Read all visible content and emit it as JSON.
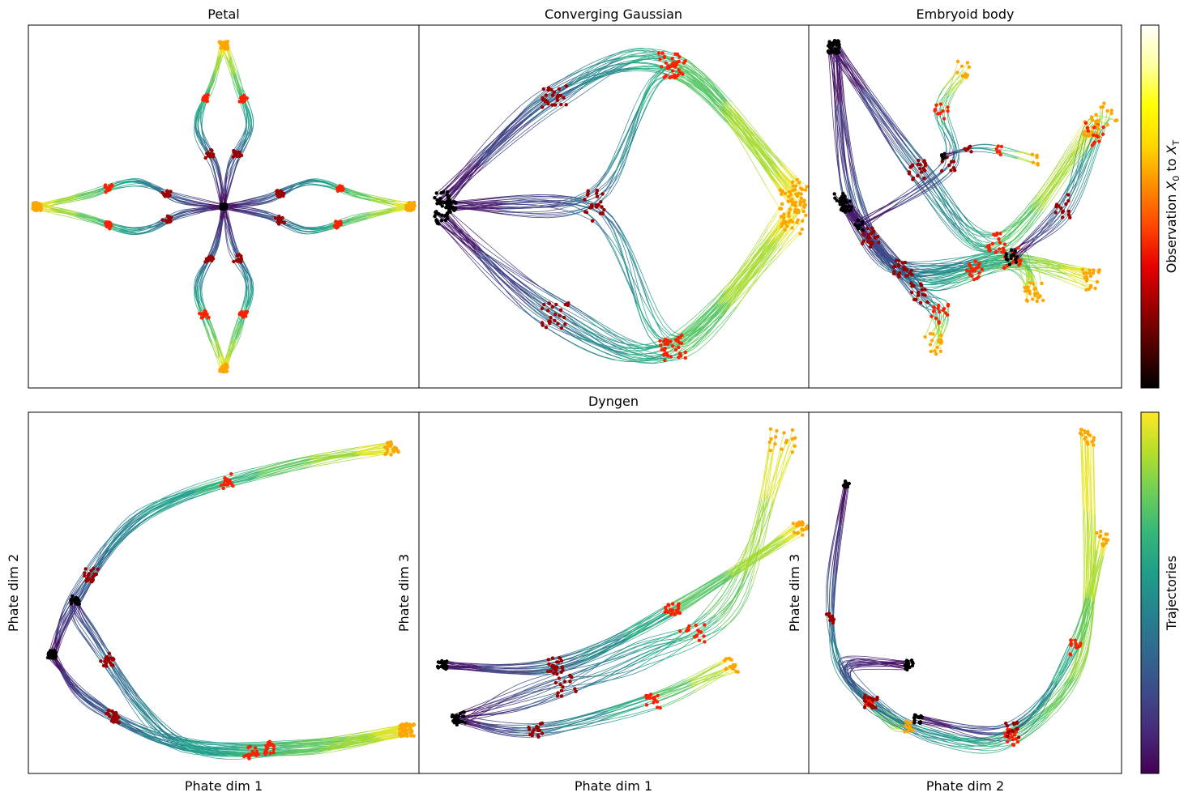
{
  "figure": {
    "colorbar_observation": {
      "label_prefix": "Observation",
      "x0": "X",
      "x0_sub": "0",
      "to": "to",
      "xT": "X",
      "xT_sub": "T",
      "colors": [
        "#000000",
        "#4d0000",
        "#9b0000",
        "#e60000",
        "#ff4500",
        "#ff8c00",
        "#ffd700",
        "#ffff00",
        "#ffffa0",
        "#ffffff"
      ]
    },
    "colorbar_trajectories": {
      "label": "Trajectories",
      "colors": [
        "#440154",
        "#482878",
        "#3e4a89",
        "#31688e",
        "#26828e",
        "#1f9e89",
        "#35b779",
        "#6ece58",
        "#b5de2b",
        "#fde725"
      ]
    },
    "group_title_bottom": "Dyngen",
    "observation_point_colors": [
      "#000000",
      "#9b0000",
      "#ff2000",
      "#ffa500"
    ]
  },
  "chart_data": [
    {
      "type": "line",
      "title": "Petal",
      "xlabel": "",
      "ylabel": "",
      "xlim": [
        -4.5,
        4.5
      ],
      "ylim": [
        -4.5,
        4.5
      ],
      "ticks": "hidden",
      "segment_length": 4,
      "colormap": "viridis",
      "marker_colormap": "observation",
      "trajectories": [
        {
          "points": [
            [
              0,
              0
            ],
            [
              0.2,
              1
            ],
            [
              0.6,
              2.0
            ],
            [
              0.3,
              3.1
            ],
            [
              0,
              4.0
            ]
          ],
          "lines": 14,
          "spread": 0.1
        },
        {
          "points": [
            [
              0,
              0
            ],
            [
              -0.2,
              1
            ],
            [
              -0.6,
              2.0
            ],
            [
              -0.3,
              3.1
            ],
            [
              0,
              4.0
            ]
          ],
          "lines": 14,
          "spread": 0.1
        },
        {
          "points": [
            [
              0,
              0
            ],
            [
              0.2,
              -1
            ],
            [
              0.6,
              -2.0
            ],
            [
              0.3,
              -3.1
            ],
            [
              0,
              -4.0
            ]
          ],
          "lines": 14,
          "spread": 0.1
        },
        {
          "points": [
            [
              0,
              0
            ],
            [
              -0.2,
              -1
            ],
            [
              -0.6,
              -2.0
            ],
            [
              -0.3,
              -3.1
            ],
            [
              0,
              -4.0
            ]
          ],
          "lines": 14,
          "spread": 0.1
        },
        {
          "points": [
            [
              0,
              0
            ],
            [
              1,
              0.2
            ],
            [
              2.0,
              0.6
            ],
            [
              3.1,
              0.3
            ],
            [
              4.3,
              0
            ]
          ],
          "lines": 14,
          "spread": 0.1
        },
        {
          "points": [
            [
              0,
              0
            ],
            [
              1,
              -0.2
            ],
            [
              2.0,
              -0.6
            ],
            [
              3.1,
              -0.3
            ],
            [
              4.3,
              0
            ]
          ],
          "lines": 14,
          "spread": 0.1
        },
        {
          "points": [
            [
              0,
              0
            ],
            [
              -1,
              0.2
            ],
            [
              -2.0,
              0.6
            ],
            [
              -3.1,
              0.3
            ],
            [
              -4.3,
              0
            ]
          ],
          "lines": 14,
          "spread": 0.1
        },
        {
          "points": [
            [
              0,
              0
            ],
            [
              -1,
              -0.2
            ],
            [
              -2.0,
              -0.6
            ],
            [
              -3.1,
              -0.3
            ],
            [
              -4.3,
              0
            ]
          ],
          "lines": 14,
          "spread": 0.1
        }
      ]
    },
    {
      "type": "line",
      "title": "Converging Gaussian",
      "xlabel": "",
      "ylabel": "",
      "xlim": [
        0,
        10
      ],
      "ylim": [
        -5,
        5
      ],
      "ticks": "hidden",
      "segment_length": 4,
      "colormap": "viridis",
      "marker_colormap": "observation",
      "trajectories": [
        {
          "points": [
            [
              0.6,
              0.2
            ],
            [
              3.5,
              3.0
            ],
            [
              6.5,
              3.9
            ],
            [
              9.6,
              0.2
            ]
          ],
          "lines": 26,
          "spread": 0.35
        },
        {
          "points": [
            [
              0.6,
              -0.3
            ],
            [
              3.5,
              -3.0
            ],
            [
              6.5,
              -3.9
            ],
            [
              9.6,
              -0.2
            ]
          ],
          "lines": 26,
          "spread": 0.35
        },
        {
          "points": [
            [
              0.8,
              0
            ],
            [
              4.5,
              0.2
            ],
            [
              6.5,
              3.7
            ],
            [
              9.6,
              0.5
            ]
          ],
          "lines": 12,
          "spread": 0.25
        },
        {
          "points": [
            [
              0.8,
              0
            ],
            [
              4.5,
              -0.2
            ],
            [
              6.5,
              -3.7
            ],
            [
              9.6,
              -0.5
            ]
          ],
          "lines": 12,
          "spread": 0.25
        }
      ]
    },
    {
      "type": "line",
      "title": "Embryoid body",
      "xlabel": "",
      "ylabel": "",
      "xlim": [
        0,
        10
      ],
      "ylim": [
        0,
        10
      ],
      "ticks": "hidden",
      "segment_length": 4,
      "colormap": "viridis",
      "marker_colormap": "observation",
      "trajectories": [
        {
          "points": [
            [
              0.8,
              9.4
            ],
            [
              1.5,
              5.0
            ],
            [
              3.5,
              3.0
            ],
            [
              6.5,
              3.5
            ],
            [
              9.0,
              3.0
            ]
          ],
          "lines": 22,
          "spread": 0.3
        },
        {
          "points": [
            [
              0.8,
              9.4
            ],
            [
              3.5,
              6.0
            ],
            [
              6.0,
              4.0
            ],
            [
              9.0,
              7.2
            ]
          ],
          "lines": 20,
          "spread": 0.3
        },
        {
          "points": [
            [
              1.2,
              5.0
            ],
            [
              3.0,
              3.3
            ],
            [
              6.5,
              3.6
            ],
            [
              7.2,
              2.6
            ]
          ],
          "lines": 22,
          "spread": 0.3
        },
        {
          "points": [
            [
              1.0,
              5.2
            ],
            [
              3.5,
              2.6
            ],
            [
              4.2,
              2.0
            ],
            [
              4.0,
              1.2
            ]
          ],
          "lines": 16,
          "spread": 0.3
        },
        {
          "points": [
            [
              1.6,
              4.5
            ],
            [
              4.5,
              6.2
            ],
            [
              4.2,
              7.6
            ],
            [
              5.0,
              8.8
            ]
          ],
          "lines": 10,
          "spread": 0.25
        },
        {
          "points": [
            [
              6.5,
              3.6
            ],
            [
              8.2,
              5.0
            ],
            [
              9.2,
              7.0
            ],
            [
              9.5,
              7.5
            ]
          ],
          "lines": 14,
          "spread": 0.35
        },
        {
          "points": [
            [
              4.3,
              6.4
            ],
            [
              5.5,
              6.6
            ],
            [
              7.2,
              6.3
            ]
          ],
          "lines": 6,
          "spread": 0.15
        }
      ]
    },
    {
      "type": "line",
      "title": "",
      "xlabel": "Phate dim 1",
      "ylabel": "Phate dim 2",
      "xlim": [
        0,
        10
      ],
      "ylim": [
        0,
        10
      ],
      "ticks": "hidden",
      "segment_length": 4,
      "colormap": "viridis",
      "marker_colormap": "observation",
      "trajectories": [
        {
          "points": [
            [
              0.6,
              3.3
            ],
            [
              1.2,
              4.8
            ],
            [
              3.0,
              7.2
            ],
            [
              6.5,
              8.5
            ],
            [
              9.3,
              9.0
            ]
          ],
          "lines": 22,
          "spread": 0.18
        },
        {
          "points": [
            [
              0.6,
              3.3
            ],
            [
              1.6,
              2.0
            ],
            [
              4.0,
              0.8
            ],
            [
              7.5,
              0.8
            ],
            [
              9.7,
              1.2
            ]
          ],
          "lines": 22,
          "spread": 0.18
        },
        {
          "points": [
            [
              1.2,
              4.8
            ],
            [
              1.5,
              4.0
            ],
            [
              3.8,
              0.9
            ],
            [
              7.0,
              0.7
            ],
            [
              9.7,
              1.2
            ]
          ],
          "lines": 18,
          "spread": 0.2
        }
      ]
    },
    {
      "type": "line",
      "title": "Dyngen",
      "xlabel": "Phate dim 1",
      "ylabel": "Phate dim 3",
      "xlim": [
        0,
        10
      ],
      "ylim": [
        0,
        10
      ],
      "ticks": "hidden",
      "segment_length": 4,
      "colormap": "viridis",
      "marker_colormap": "observation",
      "trajectories": [
        {
          "points": [
            [
              0.6,
              3.0
            ],
            [
              3.5,
              3.0
            ],
            [
              6.5,
              4.5
            ],
            [
              9.8,
              6.8
            ]
          ],
          "lines": 22,
          "spread": 0.2
        },
        {
          "points": [
            [
              1.0,
              1.5
            ],
            [
              3.0,
              2.2
            ],
            [
              5.5,
              3.2
            ],
            [
              8.0,
              4.8
            ],
            [
              9.3,
              9.2
            ]
          ],
          "lines": 16,
          "spread": 0.35
        },
        {
          "points": [
            [
              1.0,
              1.5
            ],
            [
              3.0,
              1.2
            ],
            [
              6.0,
              2.0
            ],
            [
              8.0,
              3.0
            ]
          ],
          "lines": 16,
          "spread": 0.2
        }
      ]
    },
    {
      "type": "line",
      "title": "",
      "xlabel": "Phate dim 2",
      "ylabel": "Phate dim 3",
      "xlim": [
        0,
        10
      ],
      "ylim": [
        0,
        10
      ],
      "ticks": "hidden",
      "segment_length": 4,
      "colormap": "viridis",
      "marker_colormap": "observation",
      "trajectories": [
        {
          "points": [
            [
              1.2,
              8.0
            ],
            [
              0.7,
              5.0
            ],
            [
              1.0,
              3.0
            ],
            [
              2.5,
              1.5
            ],
            [
              3.2,
              1.3
            ]
          ],
          "lines": 14,
          "spread": 0.15
        },
        {
          "points": [
            [
              3.2,
              3.0
            ],
            [
              1.2,
              3.0
            ],
            [
              2.0,
              2.0
            ],
            [
              4.0,
              1.0
            ],
            [
              6.5,
              1.0
            ],
            [
              8.8,
              3.5
            ],
            [
              8.9,
              9.3
            ]
          ],
          "lines": 18,
          "spread": 0.22
        },
        {
          "points": [
            [
              3.5,
              1.5
            ],
            [
              6.5,
              1.2
            ],
            [
              8.5,
              3.5
            ],
            [
              9.4,
              6.5
            ]
          ],
          "lines": 14,
          "spread": 0.22
        }
      ]
    }
  ]
}
